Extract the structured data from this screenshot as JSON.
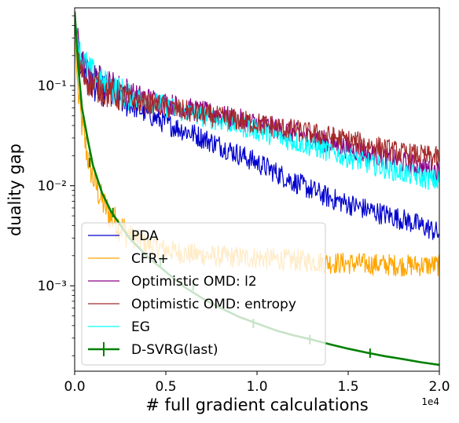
{
  "chart_data": {
    "type": "line",
    "xlabel": "# full gradient calculations",
    "ylabel": "duality gap",
    "x_offset_label": "1e4",
    "xlim": [
      0,
      20000
    ],
    "ylim": [
      0.00014,
      0.6
    ],
    "yscale": "log",
    "x_ticks": [
      0,
      5000,
      10000,
      15000,
      20000
    ],
    "x_tick_labels": [
      "0.0",
      "0.5",
      "1.0",
      "1.5",
      "2.0"
    ],
    "y_ticks": [
      0.001,
      0.01,
      0.1
    ],
    "y_tick_labels": [
      "10⁻³",
      "10⁻²",
      "10⁻¹"
    ],
    "legend_position": "lower-left",
    "grid": false,
    "series": [
      {
        "name": "PDA",
        "color": "#0000cd",
        "noisy": true,
        "x": [
          0,
          300,
          800,
          1500,
          2500,
          3500,
          5000,
          6500,
          8000,
          10000,
          12000,
          14000,
          16000,
          18000,
          19500,
          20000
        ],
        "y": [
          0.45,
          0.17,
          0.11,
          0.09,
          0.075,
          0.058,
          0.042,
          0.033,
          0.025,
          0.017,
          0.011,
          0.0075,
          0.0058,
          0.0046,
          0.0037,
          0.0033
        ]
      },
      {
        "name": "CFR+",
        "color": "#ffa500",
        "noisy": true,
        "x": [
          0,
          200,
          400,
          700,
          1000,
          1500,
          2000,
          3000,
          4000,
          5000,
          6000,
          8000,
          10000,
          12000,
          14000,
          16000,
          18000,
          20000
        ],
        "y": [
          0.3,
          0.08,
          0.04,
          0.02,
          0.012,
          0.007,
          0.0048,
          0.0032,
          0.0026,
          0.0023,
          0.0021,
          0.00195,
          0.0019,
          0.0018,
          0.0017,
          0.00165,
          0.0016,
          0.0016
        ]
      },
      {
        "name": "Optimistic OMD: l2",
        "color": "#8b008b",
        "noisy": true,
        "x": [
          0,
          300,
          800,
          1500,
          2500,
          4000,
          6000,
          8000,
          10000,
          12000,
          14000,
          16000,
          18000,
          20000
        ],
        "y": [
          0.48,
          0.18,
          0.125,
          0.11,
          0.09,
          0.075,
          0.06,
          0.05,
          0.042,
          0.034,
          0.027,
          0.021,
          0.017,
          0.014
        ]
      },
      {
        "name": "Optimistic OMD: entropy",
        "color": "#a52a2a",
        "noisy": true,
        "x": [
          0,
          300,
          800,
          1500,
          2500,
          4000,
          6000,
          8000,
          10000,
          12000,
          14000,
          16000,
          18000,
          20000
        ],
        "y": [
          0.4,
          0.14,
          0.11,
          0.09,
          0.078,
          0.066,
          0.056,
          0.048,
          0.042,
          0.036,
          0.031,
          0.026,
          0.021,
          0.019
        ]
      },
      {
        "name": "EG",
        "color": "#00ffff",
        "noisy": true,
        "x": [
          0,
          300,
          800,
          1500,
          2500,
          4000,
          6000,
          8000,
          10000,
          12000,
          14000,
          16000,
          18000,
          20000
        ],
        "y": [
          0.5,
          0.2,
          0.14,
          0.105,
          0.085,
          0.07,
          0.055,
          0.045,
          0.036,
          0.028,
          0.022,
          0.017,
          0.0135,
          0.011
        ]
      },
      {
        "name": "D-SVRG(last)",
        "color": "#008000",
        "noisy": false,
        "errorbars": true,
        "x": [
          0,
          200,
          400,
          700,
          1000,
          1500,
          2000,
          3000,
          4000,
          5000,
          6000,
          7000,
          8000,
          9000,
          10000,
          11000,
          12000,
          13000,
          14000,
          15000,
          16000,
          17000,
          18000,
          19000,
          20000
        ],
        "y": [
          0.55,
          0.15,
          0.06,
          0.03,
          0.016,
          0.0085,
          0.0055,
          0.003,
          0.00195,
          0.00138,
          0.00098,
          0.00075,
          0.0006,
          0.00049,
          0.00042,
          0.00036,
          0.00032,
          0.00029,
          0.00026,
          0.000235,
          0.000215,
          0.000198,
          0.000185,
          0.000172,
          0.000162
        ],
        "errorbar_x": [
          820,
          2100,
          3200,
          4700,
          6500,
          9800,
          12900,
          16200
        ],
        "errorbar_y": [
          0.017,
          0.0054,
          0.0033,
          0.00172,
          0.001,
          0.00042,
          0.00029,
          0.000212
        ]
      }
    ]
  }
}
